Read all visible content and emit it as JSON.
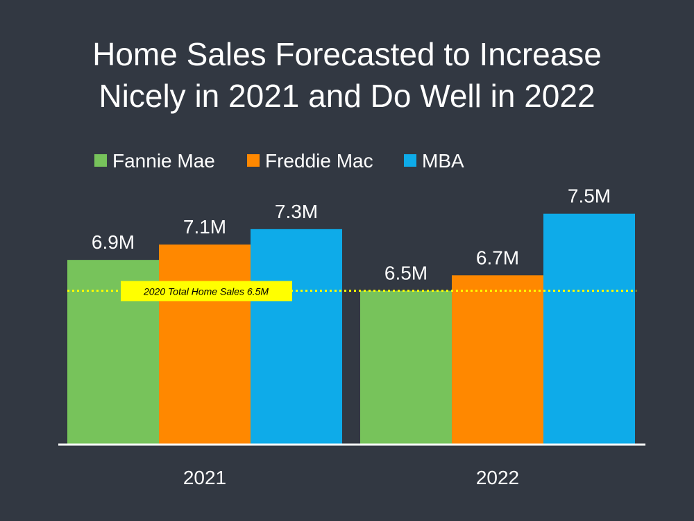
{
  "colors": {
    "background": "#323842",
    "fannie_mae": "#77c35b",
    "freddie_mac": "#ff8800",
    "mba": "#0eabe9",
    "reference_line": "#ffff00",
    "axis": "#ffffff"
  },
  "chart_data": {
    "type": "bar",
    "title_lines": [
      "Home Sales Forecasted to Increase",
      "Nicely in 2021 and Do Well in 2022"
    ],
    "categories": [
      "2021",
      "2022"
    ],
    "series": [
      {
        "name": "Fannie Mae",
        "values": [
          6.9,
          6.5
        ],
        "labels": [
          "6.9M",
          "6.5M"
        ],
        "color": "#77c35b"
      },
      {
        "name": "Freddie Mac",
        "values": [
          7.1,
          6.7
        ],
        "labels": [
          "7.1M",
          "6.7M"
        ],
        "color": "#ff8800"
      },
      {
        "name": "MBA",
        "values": [
          7.3,
          7.5
        ],
        "labels": [
          "7.3M",
          "7.5M"
        ],
        "color": "#0eabe9"
      }
    ],
    "reference_line": {
      "value": 6.5,
      "label": "2020 Total Home Sales 6.5M",
      "style": "dotted"
    },
    "ylim": [
      4.5,
      7.75
    ],
    "legend_position": "top-left",
    "grid": false,
    "y_axis_visible": false,
    "xlabel": "",
    "ylabel": ""
  }
}
